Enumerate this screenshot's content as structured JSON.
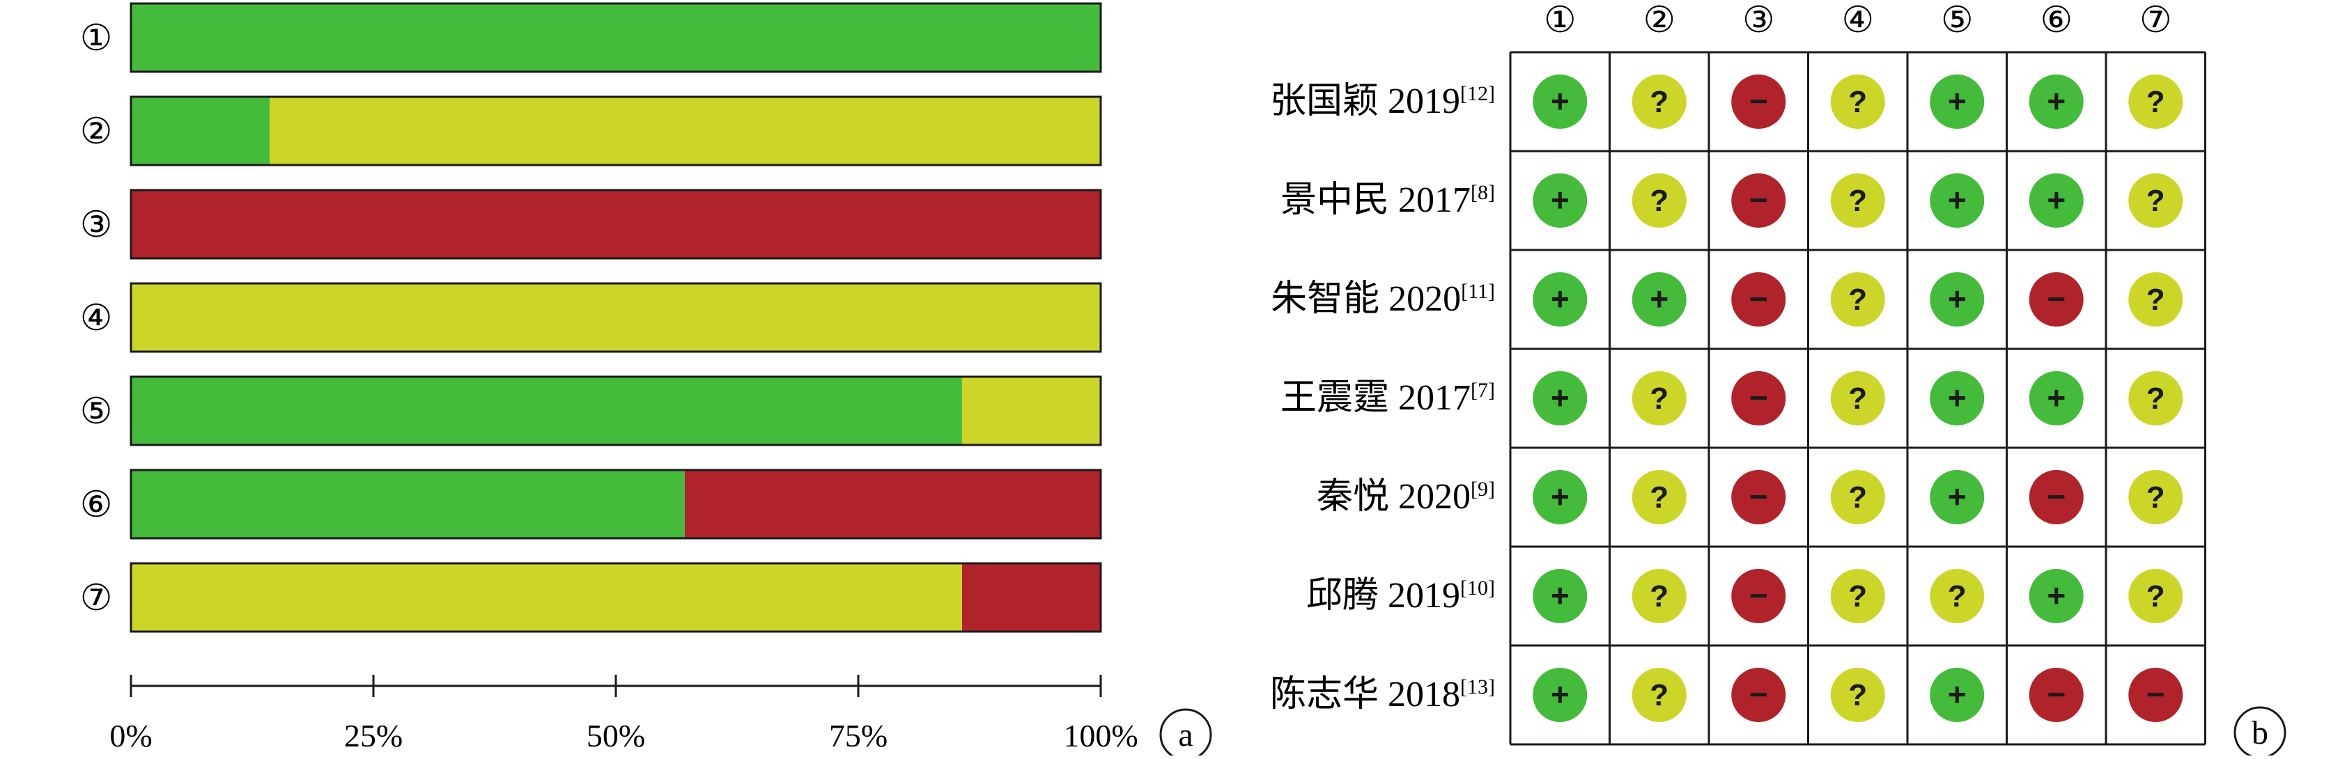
{
  "colors": {
    "low": "#44bb3a",
    "unclear": "#cbd628",
    "high": "#b0232a",
    "border": "#1a1a1a"
  },
  "chart_data": [
    {
      "type": "bar",
      "panel_label": "a",
      "categories": [
        "①",
        "②",
        "③",
        "④",
        "⑤",
        "⑥",
        "⑦"
      ],
      "xlim": [
        0,
        100
      ],
      "xticks": [
        "0%",
        "25%",
        "50%",
        "75%",
        "100%"
      ],
      "series": [
        {
          "key": "low",
          "values": [
            100,
            14.3,
            0,
            0,
            85.7,
            57.1,
            0
          ]
        },
        {
          "key": "unclear",
          "values": [
            0,
            85.7,
            0,
            100,
            14.3,
            0,
            85.7
          ]
        },
        {
          "key": "high",
          "values": [
            0,
            0,
            100,
            0,
            0,
            42.9,
            14.3
          ]
        }
      ]
    },
    {
      "type": "table",
      "panel_label": "b",
      "columns": [
        "①",
        "②",
        "③",
        "④",
        "⑤",
        "⑥",
        "⑦"
      ],
      "rows": [
        {
          "study": "张国颖 2019",
          "ref": "[12]",
          "judgements": [
            "+",
            "?",
            "−",
            "?",
            "+",
            "+",
            "?"
          ]
        },
        {
          "study": "景中民 2017",
          "ref": "[8]",
          "judgements": [
            "+",
            "?",
            "−",
            "?",
            "+",
            "+",
            "?"
          ]
        },
        {
          "study": "朱智能 2020",
          "ref": "[11]",
          "judgements": [
            "+",
            "+",
            "−",
            "?",
            "+",
            "−",
            "?"
          ]
        },
        {
          "study": "王震霆 2017",
          "ref": "[7]",
          "judgements": [
            "+",
            "?",
            "−",
            "?",
            "+",
            "+",
            "?"
          ]
        },
        {
          "study": "秦悦 2020",
          "ref": "[9]",
          "judgements": [
            "+",
            "?",
            "−",
            "?",
            "+",
            "−",
            "?"
          ]
        },
        {
          "study": "邱腾 2019",
          "ref": "[10]",
          "judgements": [
            "+",
            "?",
            "−",
            "?",
            "?",
            "+",
            "?"
          ]
        },
        {
          "study": "陈志华 2018",
          "ref": "[13]",
          "judgements": [
            "+",
            "?",
            "−",
            "?",
            "+",
            "−",
            "−"
          ]
        }
      ]
    }
  ]
}
